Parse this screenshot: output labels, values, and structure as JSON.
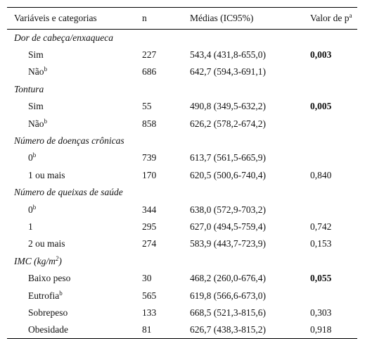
{
  "header": {
    "columns": [
      "Variáveis e categorias",
      "n",
      "Médias (IC95%)",
      {
        "text": "Valor de p",
        "sup": "a"
      }
    ]
  },
  "groups": [
    {
      "title": {
        "text": "Dor de cabeça/enxaqueca"
      },
      "rows": [
        {
          "label": {
            "text": "Sim"
          },
          "n": 227,
          "mean": "543,4 (431,8-655,0)",
          "p": "0,003",
          "bold": true
        },
        {
          "label": {
            "text": "Não",
            "sup": "b"
          },
          "n": 686,
          "mean": "642,7 (594,3-691,1)"
        }
      ]
    },
    {
      "title": {
        "text": "Tontura"
      },
      "rows": [
        {
          "label": {
            "text": "Sim"
          },
          "n": 55,
          "mean": "490,8 (349,5-632,2)",
          "p": "0,005",
          "bold": true
        },
        {
          "label": {
            "text": "Não",
            "sup": "b"
          },
          "n": 858,
          "mean": "626,2 (578,2-674,2)"
        }
      ]
    },
    {
      "title": {
        "text": "Número de doenças crônicas"
      },
      "rows": [
        {
          "label": {
            "text": "0",
            "sup": "b"
          },
          "n": 739,
          "mean": "613,7 (561,5-665,9)"
        },
        {
          "label": {
            "text": "1 ou mais"
          },
          "n": 170,
          "mean": "620,5 (500,6-740,4)",
          "p": "0,840"
        }
      ]
    },
    {
      "title": {
        "text": "Número de queixas de saúde"
      },
      "rows": [
        {
          "label": {
            "text": "0",
            "sup": "b"
          },
          "n": 344,
          "mean": "638,0 (572,9-703,2)"
        },
        {
          "label": {
            "text": "1"
          },
          "n": 295,
          "mean": "627,0 (494,5-759,4)",
          "p": "0,742"
        },
        {
          "label": {
            "text": "2 ou mais"
          },
          "n": 274,
          "mean": "583,9 (443,7-723,9)",
          "p": "0,153"
        }
      ]
    },
    {
      "title": {
        "text": "IMC (kg/m",
        "sup": "2",
        "after": ")"
      },
      "rows": [
        {
          "label": {
            "text": "Baixo peso"
          },
          "n": 30,
          "mean": "468,2 (260,0-676,4)",
          "p": "0,055",
          "bold": true
        },
        {
          "label": {
            "text": "Eutrofia",
            "sup": "b"
          },
          "n": 565,
          "mean": "619,8 (566,6-673,0)"
        },
        {
          "label": {
            "text": "Sobrepeso"
          },
          "n": 133,
          "mean": "668,5 (521,3-815,6)",
          "p": "0,303"
        },
        {
          "label": {
            "text": "Obesidade"
          },
          "n": 81,
          "mean": "626,7 (438,3-815,2)",
          "p": "0,918"
        }
      ]
    }
  ]
}
